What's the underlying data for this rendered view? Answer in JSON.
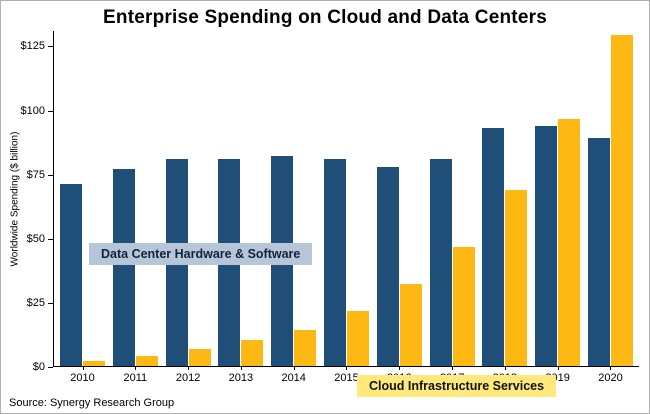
{
  "title": "Enterprise Spending on Cloud and Data Centers",
  "source": "Source: Synergy Research Group",
  "chart_data": {
    "type": "bar",
    "categories": [
      "2010",
      "2011",
      "2012",
      "2013",
      "2014",
      "2015",
      "2016",
      "2017",
      "2018",
      "2019",
      "2020"
    ],
    "series": [
      {
        "name": "Data Center Hardware & Software",
        "color": "#1f4e79",
        "values": [
          71,
          77,
          81,
          81,
          82,
          81,
          78,
          81,
          93,
          94,
          89
        ]
      },
      {
        "name": "Cloud Infrastructure Services",
        "color": "#fdb813",
        "values": [
          2,
          4,
          6.5,
          10,
          14,
          21.5,
          32,
          46.5,
          69,
          96.5,
          129.5
        ]
      }
    ],
    "title": "Enterprise Spending on Cloud and Data Centers",
    "xlabel": "",
    "ylabel": "Worldwide Spending ($ billion)",
    "ylim": [
      0,
      131
    ],
    "yticks": [
      {
        "value": 0,
        "label": "$0"
      },
      {
        "value": 25,
        "label": "$25"
      },
      {
        "value": 50,
        "label": "$50"
      },
      {
        "value": 75,
        "label": "$75"
      },
      {
        "value": 100,
        "label": "$100"
      },
      {
        "value": 125,
        "label": "$125"
      }
    ],
    "grid": false,
    "legend_position": "in-plot annotation boxes",
    "annotations": [
      {
        "text": "Data Center Hardware & Software",
        "bg": "#b7c5d8",
        "color": "#10243d"
      },
      {
        "text": "Cloud Infrastructure Services",
        "bg": "#ffe97d",
        "color": "#111111"
      }
    ]
  }
}
